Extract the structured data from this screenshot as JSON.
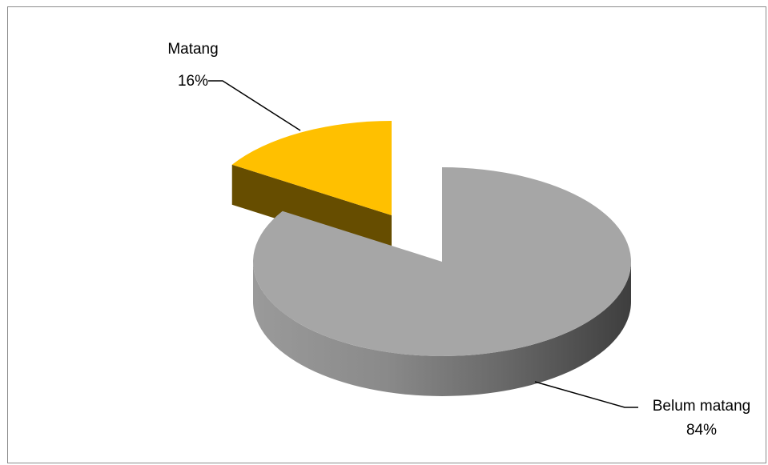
{
  "chart_data": {
    "type": "pie",
    "title": "",
    "slices": [
      {
        "name": "Matang",
        "value": 16,
        "label_pct": "16%",
        "color": "#FFC000",
        "side_color": "#664D00",
        "exploded": true
      },
      {
        "name": "Belum matang",
        "value": 84,
        "label_pct": "84%",
        "color": "#A6A6A6",
        "side_color": "#5A5A5A",
        "exploded": false
      }
    ],
    "legend": "none",
    "style": "3d"
  }
}
